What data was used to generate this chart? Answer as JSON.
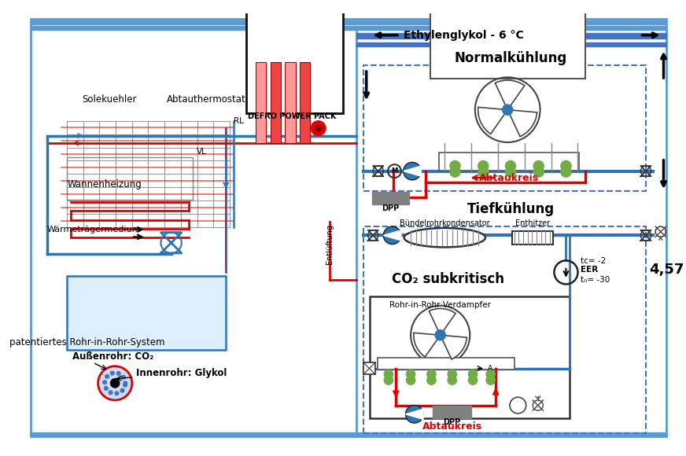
{
  "bg_color": "#ffffff",
  "blue_thick": "#4472c4",
  "blue_med": "#2e75b6",
  "blue_light": "#bdd7ee",
  "blue_band": "#5b9bd5",
  "red_color": "#e00000",
  "green_color": "#70ad47",
  "gray_color": "#7f7f7f",
  "dark_gray": "#404040",
  "light_blue_bg": "#ddeeff",
  "dashed_color": "#4472c4",
  "ethylenglykol_text": "Ethylenglykol - 6 °C",
  "normalkuehlung_text": "Normalkühlung",
  "tiefkuehlung_text": "Tiefkühlung",
  "co2_text": "CO₂ subkritisch",
  "rohr_verdampfer_text": "Rohr-in-Rohr Verdampfer",
  "buendel_text": "Bündelrohrkondensator",
  "enthitzer_text": "Enthitzer",
  "abtaukreis_text": "Abtaukreis",
  "solekuehler_text": "Solekuehler",
  "abtauthermostat_text": "Abtauthermostat",
  "defro_text": "DEFRO POWER PACK",
  "wannenheizung_text": "Wannenheizung",
  "waerme_text": "Wärmeträgermedium",
  "entlueftung_text": "Entlüftung",
  "rl_text": "RL",
  "vl_text": "VL",
  "tc_text": "tᴄ= -2",
  "t0_text": "t₀= -30",
  "eer_text": "EER",
  "eer_val": "4,57",
  "dpp_text": "DPP",
  "aussen_text": "Außenrohr: CO₂",
  "innen_text": "Innenrohr: Glykol",
  "patent_text": "patentiertes Rohr-in-Rohr-System"
}
